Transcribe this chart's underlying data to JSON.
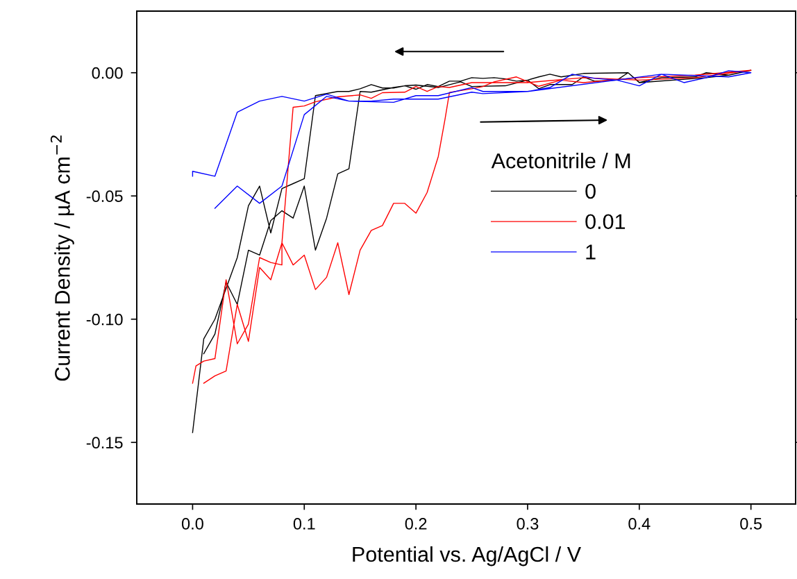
{
  "chart_data": {
    "type": "line",
    "xlabel": "Potential vs. Ag/AgCl / V",
    "ylabel": "Current Density / µA cm$^{−2}$",
    "legend_title": "Acetonitrile / M",
    "legend": "center right",
    "grid": false,
    "marker": "none",
    "line_style": "solid",
    "xlim": [
      -0.05,
      0.54
    ],
    "ylim": [
      -0.175,
      0.025
    ],
    "xticks": [
      {
        "value": 0,
        "label": "0.0"
      },
      0.1,
      0.2,
      0.3,
      0.4,
      0.5
    ],
    "yticks": [
      {
        "value": 0,
        "label": "0.00"
      },
      {
        "value": -0.05,
        "label": "-0.05"
      },
      {
        "value": -0.1,
        "label": "-0.10"
      },
      {
        "value": -0.15,
        "label": "-0.15"
      }
    ],
    "series": [
      {
        "name": "0",
        "color": "#000000",
        "x": [
          0.0,
          0.01,
          0.02,
          0.04,
          0.05,
          0.06,
          0.07,
          0.08,
          0.09,
          0.1,
          0.11,
          0.13,
          0.14,
          0.15,
          0.16,
          0.17,
          0.18,
          0.19,
          0.2,
          0.21,
          0.22,
          0.23,
          0.24,
          0.25,
          0.26,
          0.27,
          0.28,
          0.29,
          0.3,
          0.31,
          0.32,
          0.33,
          0.35,
          0.39,
          0.4,
          0.42,
          0.45,
          0.46,
          0.48,
          0.5,
          0.48,
          0.46,
          0.4,
          0.39,
          0.38,
          0.36,
          0.35,
          0.34,
          0.32,
          0.31,
          0.3,
          0.28,
          0.25,
          0.24,
          0.22,
          0.2,
          0.19,
          0.18,
          0.16,
          0.15,
          0.14,
          0.13,
          0.12,
          0.11,
          0.1,
          0.09,
          0.08,
          0.07,
          0.06,
          0.05,
          0.04,
          0.03,
          0.02,
          0.01
        ],
        "values": [
          -0.146,
          -0.108,
          -0.1,
          -0.075,
          -0.054,
          -0.046,
          -0.065,
          -0.047,
          -0.045,
          -0.043,
          -0.0093,
          -0.0076,
          -0.0076,
          -0.0065,
          -0.0048,
          -0.0062,
          -0.0062,
          -0.0053,
          -0.0067,
          -0.0048,
          -0.0056,
          -0.0034,
          -0.0034,
          -0.002,
          -0.0023,
          -0.002,
          -0.0025,
          -0.0034,
          -0.003,
          -0.0017,
          -0.0006,
          -0.0017,
          -0.0003,
          0.0,
          -0.0039,
          -0.002,
          -0.0017,
          0.0,
          -0.001,
          0.001,
          -0.001,
          -0.002,
          -0.004,
          0.0,
          -0.003,
          -0.0034,
          -0.0017,
          -0.0048,
          -0.0048,
          -0.0065,
          -0.003,
          -0.0053,
          -0.0056,
          -0.0037,
          -0.006,
          -0.005,
          -0.0053,
          -0.006,
          -0.0079,
          -0.0076,
          -0.039,
          -0.041,
          -0.059,
          -0.072,
          -0.046,
          -0.059,
          -0.056,
          -0.06,
          -0.074,
          -0.072,
          -0.094,
          -0.085,
          -0.106,
          -0.114
        ]
      },
      {
        "name": "0.01",
        "color": "#ff0000",
        "x": [
          0.0,
          0.003,
          0.01,
          0.02,
          0.03,
          0.04,
          0.05,
          0.06,
          0.07,
          0.08,
          0.08,
          0.09,
          0.1,
          0.11,
          0.12,
          0.13,
          0.14,
          0.15,
          0.16,
          0.17,
          0.18,
          0.19,
          0.2,
          0.21,
          0.22,
          0.226,
          0.23,
          0.25,
          0.26,
          0.27,
          0.29,
          0.31,
          0.33,
          0.35,
          0.4,
          0.45,
          0.5,
          0.45,
          0.4,
          0.35,
          0.3,
          0.25,
          0.23,
          0.22,
          0.21,
          0.2,
          0.19,
          0.17,
          0.16,
          0.15,
          0.13,
          0.11,
          0.1,
          0.09,
          0.08,
          0.07,
          0.06,
          0.05,
          0.04,
          0.03,
          0.02,
          0.01
        ],
        "values": [
          -0.126,
          -0.119,
          -0.117,
          -0.116,
          -0.084,
          -0.11,
          -0.102,
          -0.075,
          -0.077,
          -0.078,
          -0.069,
          -0.078,
          -0.074,
          -0.088,
          -0.083,
          -0.069,
          -0.09,
          -0.072,
          -0.064,
          -0.062,
          -0.053,
          -0.053,
          -0.057,
          -0.0486,
          -0.034,
          -0.019,
          -0.008,
          -0.0065,
          -0.0056,
          -0.0037,
          -0.0017,
          -0.0055,
          -0.003,
          -0.004,
          -0.002,
          -0.001,
          0.001,
          -0.002,
          -0.003,
          -0.002,
          -0.004,
          -0.004,
          -0.006,
          -0.0056,
          -0.0076,
          -0.0056,
          -0.0079,
          -0.0081,
          -0.0104,
          -0.009,
          -0.0098,
          -0.0118,
          -0.0135,
          -0.014,
          -0.069,
          -0.084,
          -0.079,
          -0.109,
          -0.094,
          -0.121,
          -0.123,
          -0.126
        ]
      },
      {
        "name": "1",
        "color": "#0000ff",
        "x": [
          0.0,
          0.0,
          0.02,
          0.04,
          0.06,
          0.08,
          0.1,
          0.12,
          0.14,
          0.18,
          0.2,
          0.22,
          0.25,
          0.26,
          0.3,
          0.32,
          0.34,
          0.36,
          0.38,
          0.4,
          0.42,
          0.44,
          0.46,
          0.48,
          0.5,
          0.48,
          0.42,
          0.3,
          0.26,
          0.25,
          0.22,
          0.18,
          0.16,
          0.14,
          0.12,
          0.1,
          0.08,
          0.06,
          0.04,
          0.02
        ],
        "values": [
          -0.042,
          -0.04,
          -0.042,
          -0.016,
          -0.0115,
          -0.0096,
          -0.0115,
          -0.0087,
          -0.0115,
          -0.012,
          -0.0093,
          -0.0093,
          -0.006,
          -0.0076,
          -0.0076,
          -0.006,
          -0.0006,
          -0.0023,
          -0.003,
          -0.0053,
          -0.0006,
          -0.004,
          -0.002,
          0.0008,
          0.0,
          -0.0017,
          -0.0006,
          -0.0076,
          -0.0085,
          -0.0079,
          -0.0107,
          -0.0107,
          -0.0115,
          -0.0115,
          -0.0096,
          -0.017,
          -0.046,
          -0.053,
          -0.046,
          -0.055
        ]
      }
    ]
  }
}
